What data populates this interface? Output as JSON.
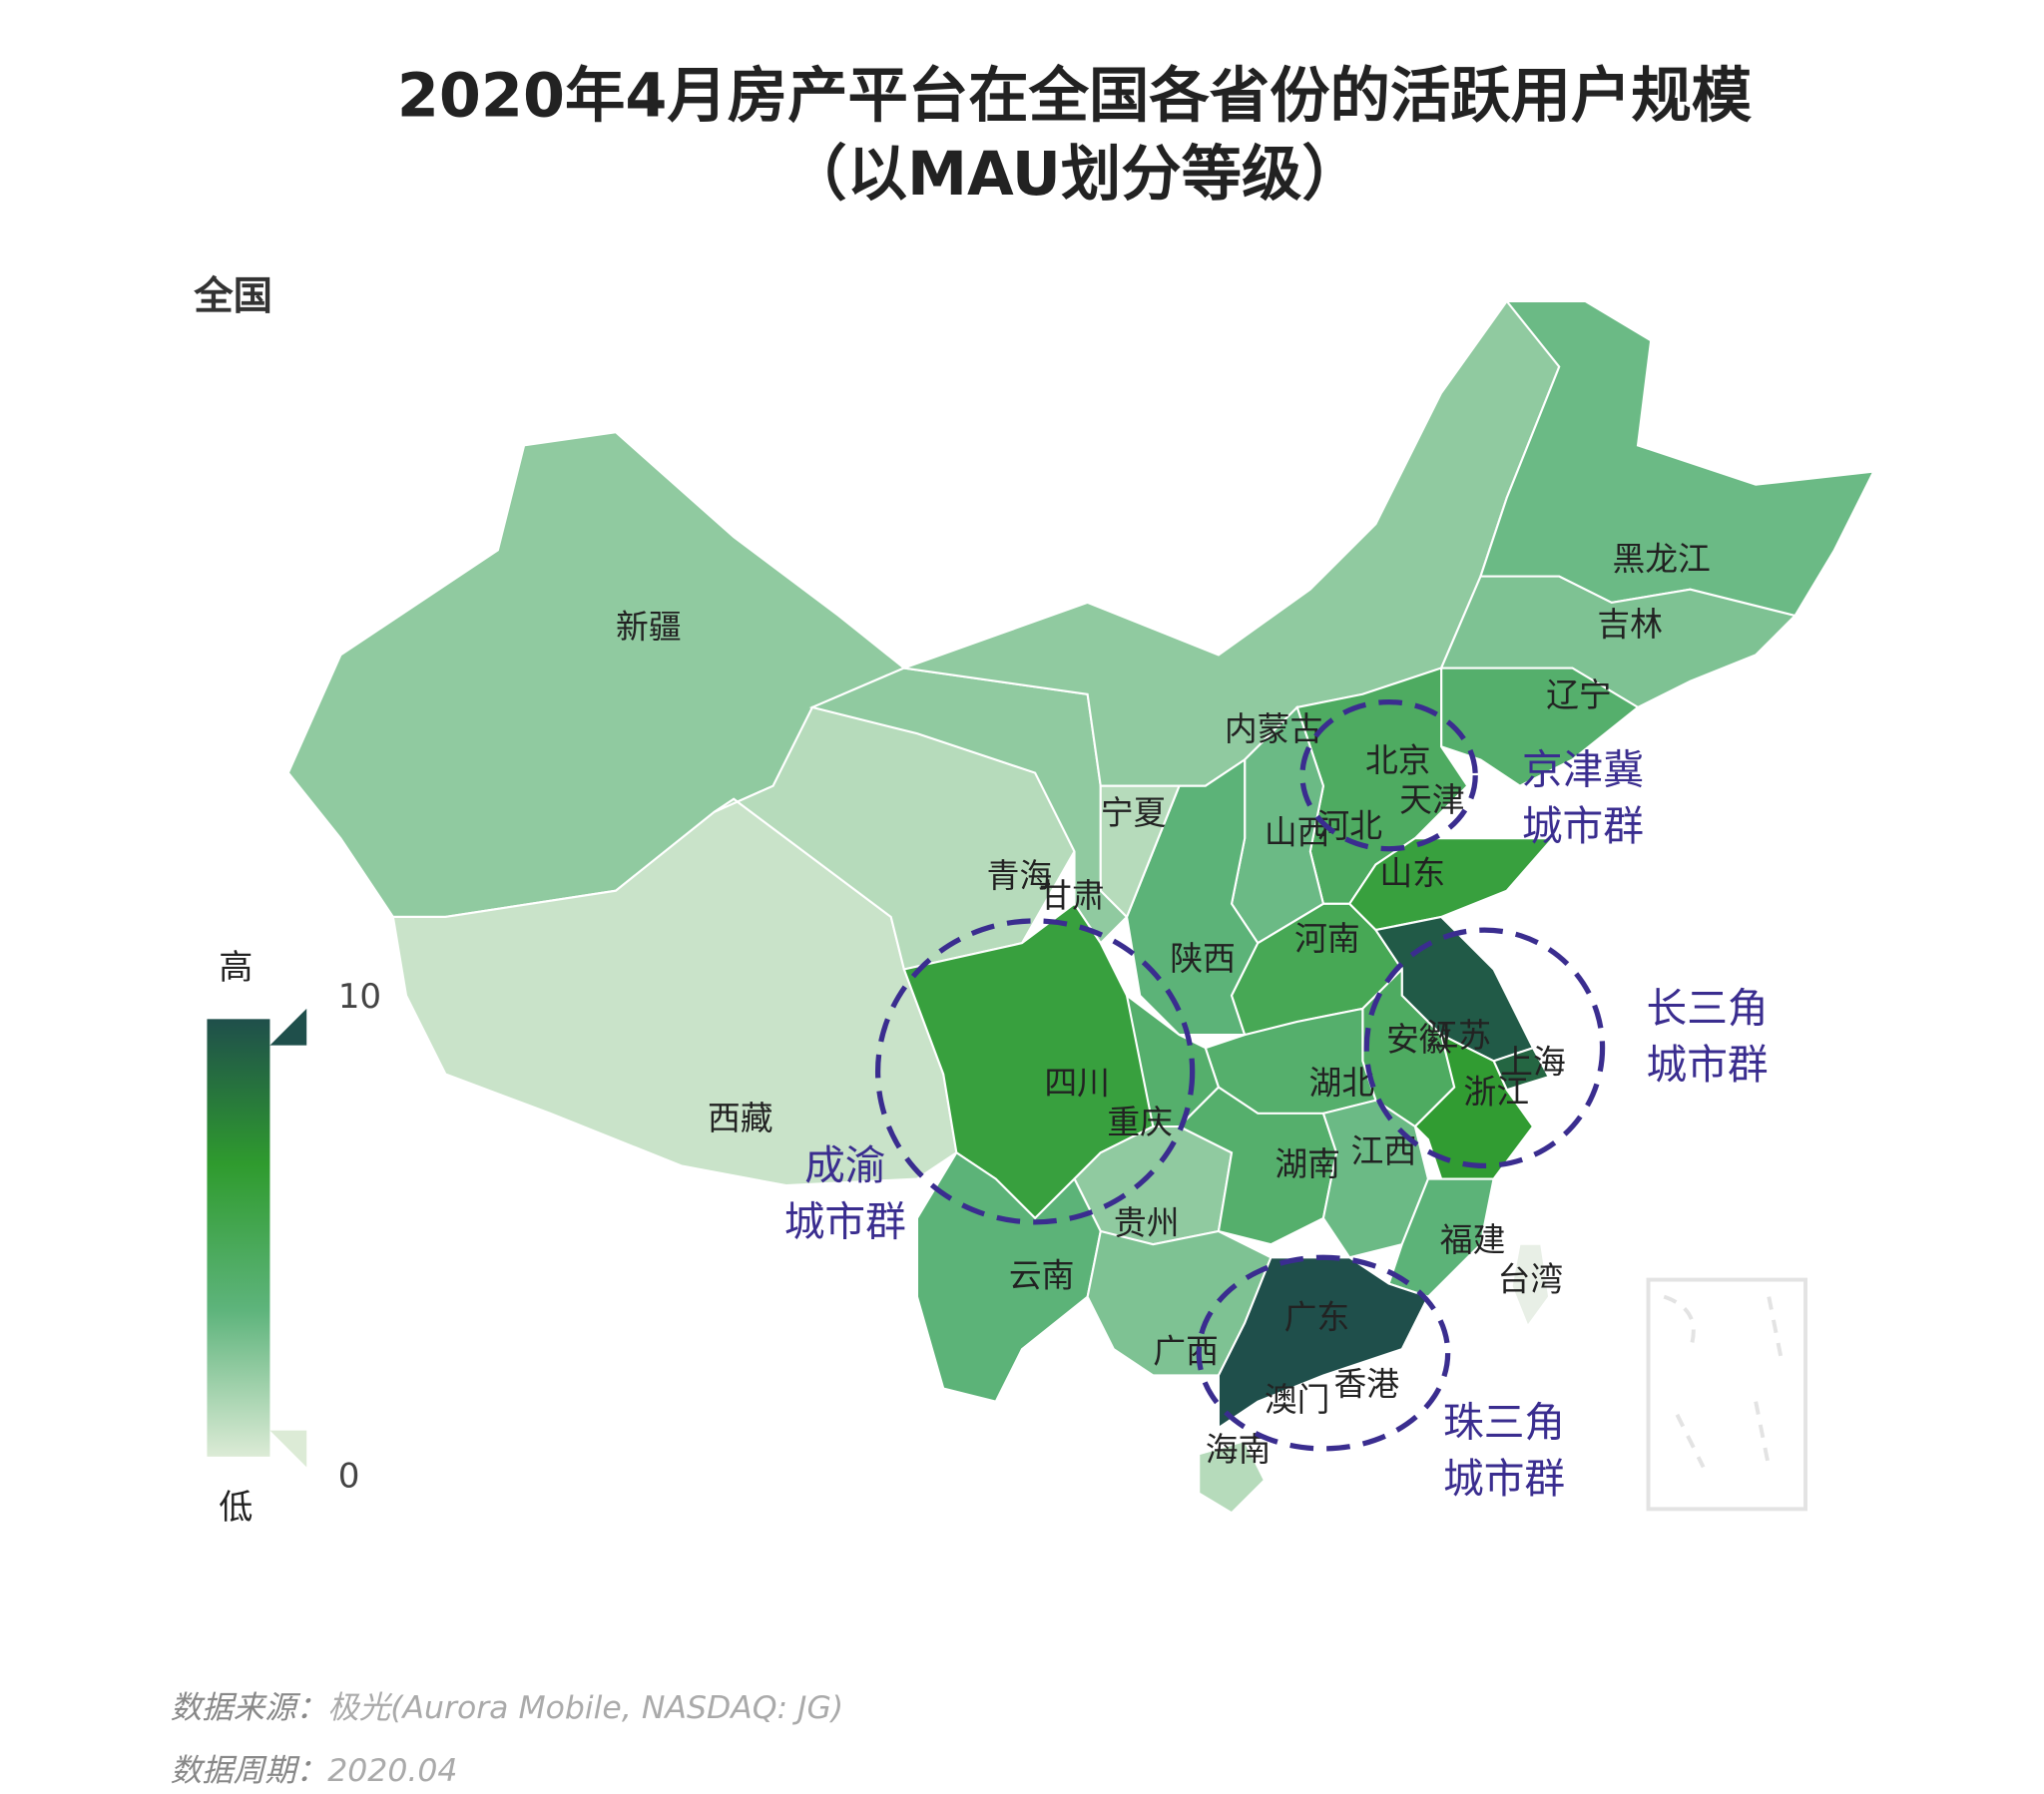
{
  "chart_data": {
    "type": "choropleth",
    "title": "2020年4月房产平台在全国各省份的活跃用户规模",
    "subtitle": "（以MAU划分等级）",
    "scope_label": "全国",
    "regions": [
      {
        "name": "新疆",
        "value": 2
      },
      {
        "name": "西藏",
        "value": 0.5
      },
      {
        "name": "青海",
        "value": 1
      },
      {
        "name": "甘肃",
        "value": 2
      },
      {
        "name": "内蒙古",
        "value": 2
      },
      {
        "name": "黑龙江",
        "value": 3
      },
      {
        "name": "吉林",
        "value": 2.5
      },
      {
        "name": "辽宁",
        "value": 4
      },
      {
        "name": "河北",
        "value": 4.5
      },
      {
        "name": "山西",
        "value": 3
      },
      {
        "name": "陕西",
        "value": 3.5
      },
      {
        "name": "宁夏",
        "value": 1
      },
      {
        "name": "山东",
        "value": 6
      },
      {
        "name": "河南",
        "value": 5
      },
      {
        "name": "江苏",
        "value": 9.5
      },
      {
        "name": "安徽",
        "value": 4.5
      },
      {
        "name": "上海",
        "value": 9
      },
      {
        "name": "浙江",
        "value": 6.5
      },
      {
        "name": "湖北",
        "value": 4
      },
      {
        "name": "四川",
        "value": 6
      },
      {
        "name": "重庆",
        "value": 4
      },
      {
        "name": "贵州",
        "value": 2
      },
      {
        "name": "云南",
        "value": 3.5
      },
      {
        "name": "湖南",
        "value": 4
      },
      {
        "name": "江西",
        "value": 3
      },
      {
        "name": "福建",
        "value": 3.5
      },
      {
        "name": "广西",
        "value": 2.5
      },
      {
        "name": "广东",
        "value": 10
      },
      {
        "name": "海南",
        "value": 1
      }
    ],
    "labels": [
      "北京",
      "天津",
      "香港",
      "澳门",
      "台湾"
    ],
    "clusters": [
      [
        "京津冀",
        "城市群"
      ],
      [
        "长三角",
        "城市群"
      ],
      [
        "成渝",
        "城市群"
      ],
      [
        "珠三角",
        "城市群"
      ]
    ],
    "colors": [
      "#dcebd6",
      "#5eb47c",
      "#2f9b2e",
      "#1f4f4b"
    ],
    "legend": {
      "range": [
        0,
        10
      ],
      "ticks": [
        0,
        10
      ],
      "high_label": "高",
      "low_label": "低"
    },
    "source": {
      "label": "数据来源：",
      "value": "极光(Aurora Mobile, NASDAQ: JG)"
    },
    "period": {
      "label": "数据周期：",
      "value": "2020.04"
    }
  }
}
